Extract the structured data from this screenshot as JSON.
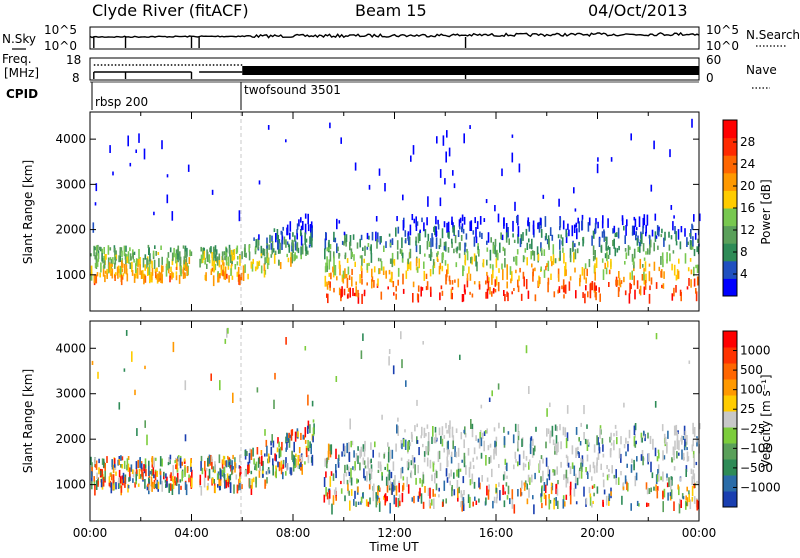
{
  "header": {
    "title": "Clyde River (fitACF)",
    "beam": "Beam 15",
    "date": "04/Oct/2013"
  },
  "status_panel": {
    "nsky_label": "N.Sky",
    "nsky_ticks": [
      "10^5",
      "10^0"
    ],
    "nsearch_label": "N.Search",
    "nsearch_ticks": [
      "10^5",
      "10^0"
    ],
    "freq_label_1": "Freq.",
    "freq_label_2": "[MHz]",
    "freq_ticks": [
      "18",
      "8"
    ],
    "nave_label": "Nave",
    "nave_ticks": [
      "60",
      "0"
    ],
    "cpid_label": "CPID",
    "cpid_entries": [
      {
        "name": "rbsp 200",
        "start_hour": 0
      },
      {
        "name": "twofsound 3501",
        "start_hour": 6
      }
    ]
  },
  "chart_data": [
    {
      "type": "heatmap",
      "name": "power",
      "ylabel": "Slant Range [km]",
      "xlabel": "",
      "ylim": [
        200,
        4600
      ],
      "xlim_hours": [
        0,
        24
      ],
      "y_ticks": [
        "1000",
        "2000",
        "3000",
        "4000"
      ],
      "colorbar": {
        "label": "Power [dB]",
        "ticks": [
          "28",
          "24",
          "20",
          "16",
          "12",
          "8",
          "4"
        ],
        "colors": [
          "#0000ff",
          "#2050c0",
          "#2e8b57",
          "#5aa05a",
          "#78c850",
          "#ffcc00",
          "#ff9900",
          "#ff6600",
          "#ff2a00",
          "#ff0000"
        ]
      }
    },
    {
      "type": "heatmap",
      "name": "velocity",
      "ylabel": "Slant Range [km]",
      "xlabel": "Time UT",
      "ylim": [
        200,
        4600
      ],
      "xlim_hours": [
        0,
        24
      ],
      "x_ticks": [
        "00:00",
        "04:00",
        "08:00",
        "12:00",
        "16:00",
        "20:00",
        "00:00"
      ],
      "y_ticks": [
        "1000",
        "2000",
        "3000",
        "4000"
      ],
      "colorbar": {
        "label": "Velocity [m s⁻¹]",
        "ticks": [
          "1000",
          "500",
          "100",
          "25",
          "−25",
          "−100",
          "−500",
          "−1000"
        ],
        "colors": [
          "#1a3fb0",
          "#2a6ca8",
          "#2e8b57",
          "#5aa05a",
          "#7ccd3c",
          "#c8c8c8",
          "#ffcc00",
          "#ff9900",
          "#ff6600",
          "#ff3300",
          "#ff0000"
        ]
      }
    }
  ]
}
